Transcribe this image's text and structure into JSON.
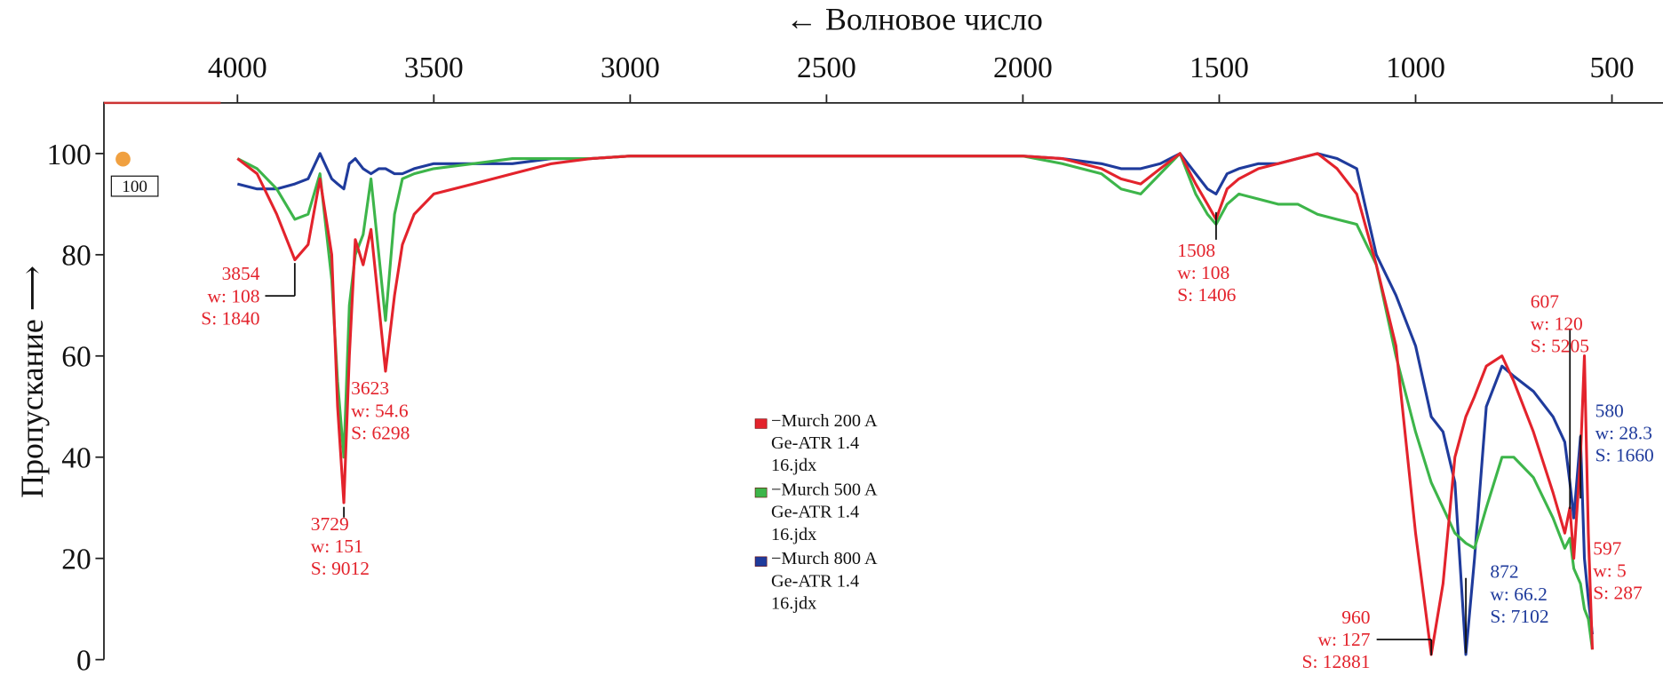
{
  "chart_data": {
    "type": "line",
    "x_label": "← Волновое число",
    "y_label": "Пропускание ⟶",
    "cursor_label": "100",
    "xlim": [
      4340,
      370
    ],
    "ylim": [
      0,
      110
    ],
    "xticks": [
      4000,
      3500,
      3000,
      2500,
      2000,
      1500,
      1000,
      500
    ],
    "yticks": [
      0,
      20,
      40,
      60,
      80,
      100
    ],
    "x": [
      4000,
      3950,
      3900,
      3854,
      3820,
      3790,
      3760,
      3745,
      3729,
      3715,
      3700,
      3680,
      3660,
      3640,
      3623,
      3600,
      3580,
      3550,
      3500,
      3400,
      3300,
      3200,
      3100,
      3000,
      2500,
      2000,
      1900,
      1800,
      1750,
      1700,
      1650,
      1600,
      1560,
      1530,
      1508,
      1480,
      1450,
      1400,
      1350,
      1300,
      1250,
      1200,
      1150,
      1100,
      1050,
      1000,
      960,
      930,
      900,
      872,
      850,
      820,
      780,
      750,
      700,
      650,
      620,
      607,
      597,
      580,
      570,
      560,
      550
    ],
    "series": [
      {
        "name": "−Murch 200 A Ge-ATR 1.4 16.jdx",
        "color": "#e3232c",
        "values": [
          99,
          96,
          88,
          79,
          82,
          95,
          80,
          50,
          31,
          60,
          83,
          78,
          85,
          70,
          57,
          72,
          82,
          88,
          92,
          94,
          96,
          98,
          99,
          99.5,
          99.5,
          99.5,
          99,
          97,
          95,
          94,
          97,
          100,
          94,
          90,
          87,
          93,
          95,
          97,
          98,
          99,
          100,
          97,
          92,
          78,
          62,
          25,
          1,
          15,
          40,
          48,
          52,
          58,
          60,
          55,
          45,
          33,
          25,
          30,
          20,
          40,
          60,
          25,
          2
        ]
      },
      {
        "name": "−Murch 500 A Ge-ATR 1.4 16.jdx",
        "color": "#3db54a",
        "values": [
          99,
          97,
          93,
          87,
          88,
          96,
          75,
          55,
          40,
          70,
          80,
          84,
          95,
          80,
          67,
          88,
          95,
          96,
          97,
          98,
          99,
          99,
          99,
          99.5,
          99.5,
          99.5,
          98,
          96,
          93,
          92,
          96,
          100,
          92,
          88,
          86,
          90,
          92,
          91,
          90,
          90,
          88,
          87,
          86,
          78,
          60,
          45,
          35,
          30,
          25,
          23,
          22,
          30,
          40,
          40,
          36,
          28,
          22,
          24,
          18,
          15,
          10,
          8,
          2
        ]
      },
      {
        "name": "−Murch 800 A Ge-ATR 1.4 16.jdx",
        "color": "#1f3b9c",
        "values": [
          94,
          93,
          93,
          94,
          95,
          100,
          95,
          94,
          93,
          98,
          99,
          97,
          96,
          97,
          97,
          96,
          96,
          97,
          98,
          98,
          98,
          99,
          99,
          99.5,
          99.5,
          99.5,
          99,
          98,
          97,
          97,
          98,
          100,
          96,
          93,
          92,
          96,
          97,
          98,
          98,
          99,
          100,
          99,
          97,
          80,
          72,
          62,
          48,
          45,
          35,
          1,
          20,
          50,
          58,
          56,
          53,
          48,
          43,
          35,
          28,
          44,
          20,
          12,
          5
        ]
      }
    ],
    "annotations": [
      {
        "x": 3854,
        "w": "w: 108",
        "s": "S: 1840",
        "color": "#e3232c"
      },
      {
        "x": 3729,
        "w": "w: 151",
        "s": "S: 9012",
        "color": "#e3232c"
      },
      {
        "x": 3623,
        "w": "w: 54.6",
        "s": "S: 6298",
        "color": "#e3232c"
      },
      {
        "x": 1508,
        "w": "w: 108",
        "s": "S: 1406",
        "color": "#e3232c"
      },
      {
        "x": 960,
        "w": "w: 127",
        "s": "S: 12881",
        "color": "#e3232c"
      },
      {
        "x": 872,
        "w": "w: 66.2",
        "s": "S: 7102",
        "color": "#1f3b9c"
      },
      {
        "x": 607,
        "w": "w: 120",
        "s": "S: 5205",
        "color": "#e3232c"
      },
      {
        "x": 597,
        "w": "w: 5",
        "s": "S: 287",
        "color": "#e3232c"
      },
      {
        "x": 580,
        "w": "w: 28.3",
        "s": "S: 1660",
        "color": "#1f3b9c"
      }
    ]
  }
}
